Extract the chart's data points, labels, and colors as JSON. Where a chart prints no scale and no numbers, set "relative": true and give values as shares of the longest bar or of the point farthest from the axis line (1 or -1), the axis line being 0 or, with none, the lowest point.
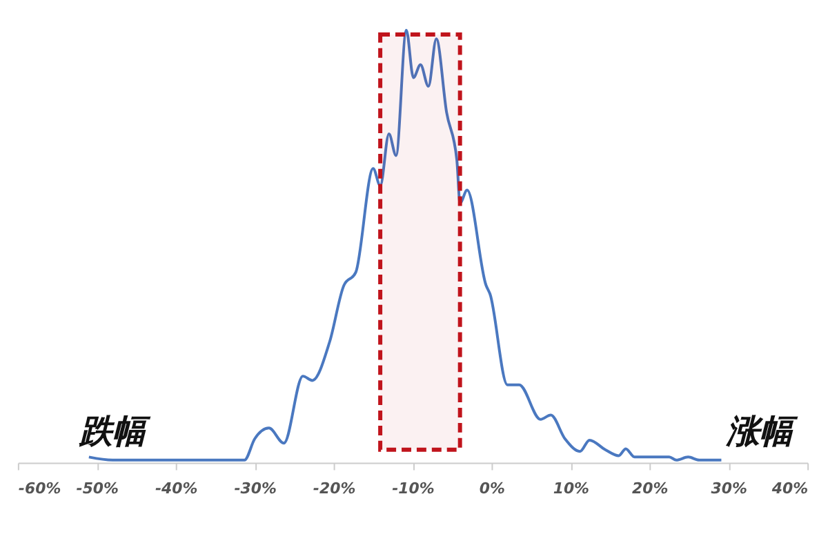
{
  "chart_data": {
    "type": "line",
    "relative": true,
    "grid": false,
    "marker": "none",
    "line_style": "solid",
    "x": [
      -51,
      -48,
      -33.9,
      -31.3,
      -30,
      -28.2,
      -26.3,
      -23.9,
      -22.7,
      -20.5,
      -18.7,
      -17.2,
      -15.0,
      -14.1,
      -13.0,
      -12.1,
      -10.8,
      -9.9,
      -9.0,
      -8.0,
      -7.0,
      -5.7,
      -4.4,
      -4.0,
      -3.1,
      -0.7,
      -0.2,
      2.0,
      3.5,
      6.2,
      7.5,
      9.3,
      11.2,
      12.4,
      14.4,
      16.1,
      17.0,
      18.1,
      22.5,
      23.4,
      24.9,
      26.3,
      29.1
    ],
    "series": [
      {
        "color": "#4a78c0",
        "values": [
          0.013,
          0.006,
          0.006,
          0.006,
          0.055,
          0.08,
          0.045,
          0.2,
          0.19,
          0.28,
          0.41,
          0.44,
          0.68,
          0.64,
          0.76,
          0.71,
          1.0,
          0.89,
          0.92,
          0.87,
          0.98,
          0.81,
          0.7,
          0.6,
          0.63,
          0.41,
          0.39,
          0.18,
          0.18,
          0.1,
          0.11,
          0.055,
          0.026,
          0.052,
          0.03,
          0.016,
          0.032,
          0.013,
          0.013,
          0.006,
          0.013,
          0.006,
          0.006
        ]
      }
    ],
    "xlim": [
      -60,
      40
    ],
    "xticks": [
      {
        "value": -60,
        "label": "-60%"
      },
      {
        "value": -50,
        "label": "-50%"
      },
      {
        "value": -40,
        "label": "-40%"
      },
      {
        "value": -30,
        "label": "-30%"
      },
      {
        "value": -20,
        "label": "-20%"
      },
      {
        "value": -10,
        "label": "-10%"
      },
      {
        "value": 0,
        "label": "0%"
      },
      {
        "value": 10,
        "label": "10%"
      },
      {
        "value": 20,
        "label": "20%"
      },
      {
        "value": 30,
        "label": "30%"
      },
      {
        "value": 40,
        "label": "40%"
      }
    ],
    "bands": [
      {
        "axis": "x",
        "from": -14.1,
        "to": -4.0,
        "color": "#c0141c"
      }
    ],
    "annotations": [
      "跌幅",
      "涨幅"
    ]
  }
}
